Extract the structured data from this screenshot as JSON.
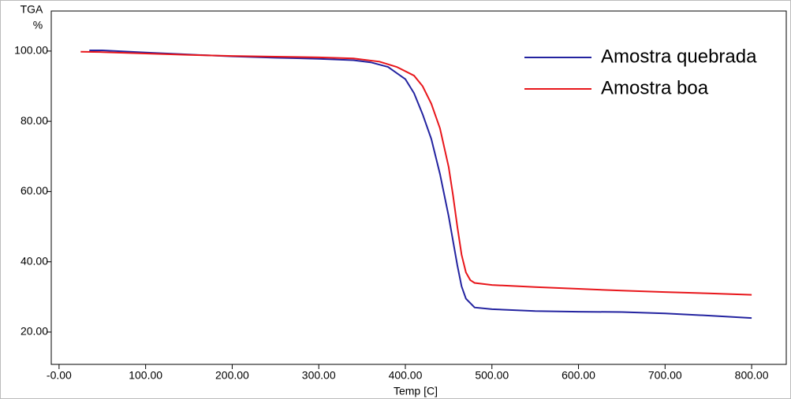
{
  "chart_data": {
    "type": "line",
    "y_label_top": "TGA",
    "y_label_unit": "%",
    "x_label": "Temp  [C]",
    "xlim": [
      -9,
      840
    ],
    "ylim": [
      10.8,
      111.4
    ],
    "xticks": [
      {
        "value": 0,
        "label": "-0.00"
      },
      {
        "value": 100,
        "label": "100.00"
      },
      {
        "value": 200,
        "label": "200.00"
      },
      {
        "value": 300,
        "label": "300.00"
      },
      {
        "value": 400,
        "label": "400.00"
      },
      {
        "value": 500,
        "label": "500.00"
      },
      {
        "value": 600,
        "label": "600.00"
      },
      {
        "value": 700,
        "label": "700.00"
      },
      {
        "value": 800,
        "label": "800.00"
      }
    ],
    "yticks": [
      {
        "value": 20,
        "label": "20.00"
      },
      {
        "value": 40,
        "label": "40.00"
      },
      {
        "value": 60,
        "label": "60.00"
      },
      {
        "value": 80,
        "label": "80.00"
      },
      {
        "value": 100,
        "label": "100.00"
      }
    ],
    "legend": "top-right",
    "series": [
      {
        "name": "Amostra quebrada",
        "color": "#2323a0",
        "x": [
          35,
          50,
          100,
          150,
          200,
          250,
          300,
          340,
          360,
          380,
          400,
          410,
          420,
          430,
          440,
          450,
          455,
          460,
          465,
          470,
          480,
          500,
          550,
          600,
          650,
          700,
          750,
          800
        ],
        "values": [
          100.2,
          100.2,
          99.6,
          99,
          98.5,
          98.1,
          97.8,
          97.4,
          96.8,
          95.5,
          92,
          88,
          82,
          75,
          65,
          53,
          46,
          39,
          33,
          29.5,
          27,
          26.5,
          26,
          25.8,
          25.7,
          25.3,
          24.7,
          24
        ]
      },
      {
        "name": "Amostra boa",
        "color": "#e8161b",
        "x": [
          25,
          50,
          100,
          150,
          200,
          250,
          300,
          340,
          370,
          390,
          410,
          420,
          430,
          440,
          450,
          455,
          460,
          465,
          470,
          475,
          480,
          500,
          550,
          600,
          650,
          700,
          750,
          800
        ],
        "values": [
          99.8,
          99.7,
          99.3,
          98.9,
          98.6,
          98.4,
          98.2,
          97.9,
          97,
          95.5,
          93,
          90,
          85,
          78,
          67,
          59,
          50,
          42,
          37,
          34.8,
          34,
          33.4,
          32.8,
          32.3,
          31.8,
          31.4,
          31,
          30.6
        ]
      }
    ]
  }
}
